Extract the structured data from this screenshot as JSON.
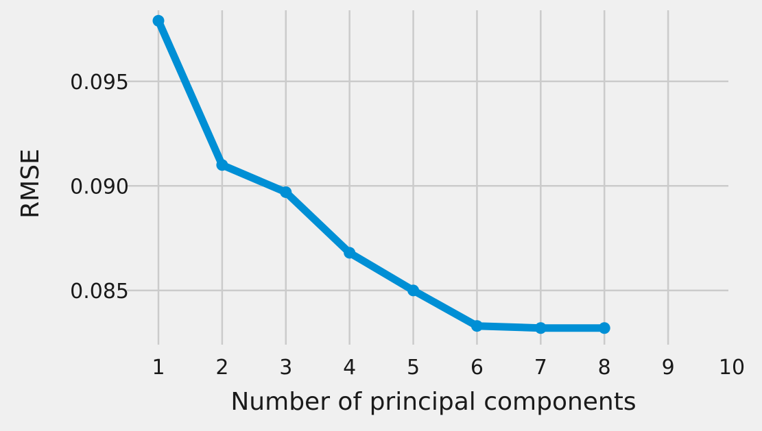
{
  "chart_data": {
    "type": "line",
    "title": "",
    "xlabel": "Number of principal components",
    "ylabel": "RMSE",
    "x_ticks": [
      1,
      2,
      3,
      4,
      5,
      6,
      7,
      8,
      9,
      10
    ],
    "y_ticks": [
      "0.085",
      "0.090",
      "0.095"
    ],
    "xlim": [
      1,
      10
    ],
    "ylim": [
      0.0827,
      0.0985
    ],
    "grid": true,
    "series": [
      {
        "x": [
          1,
          2,
          3,
          4,
          5,
          6,
          7,
          8
        ],
        "y": [
          0.0979,
          0.091,
          0.0897,
          0.0868,
          0.085,
          0.0833,
          0.0832,
          0.0832
        ],
        "color": "#008fd5",
        "marker": "circle"
      }
    ]
  }
}
